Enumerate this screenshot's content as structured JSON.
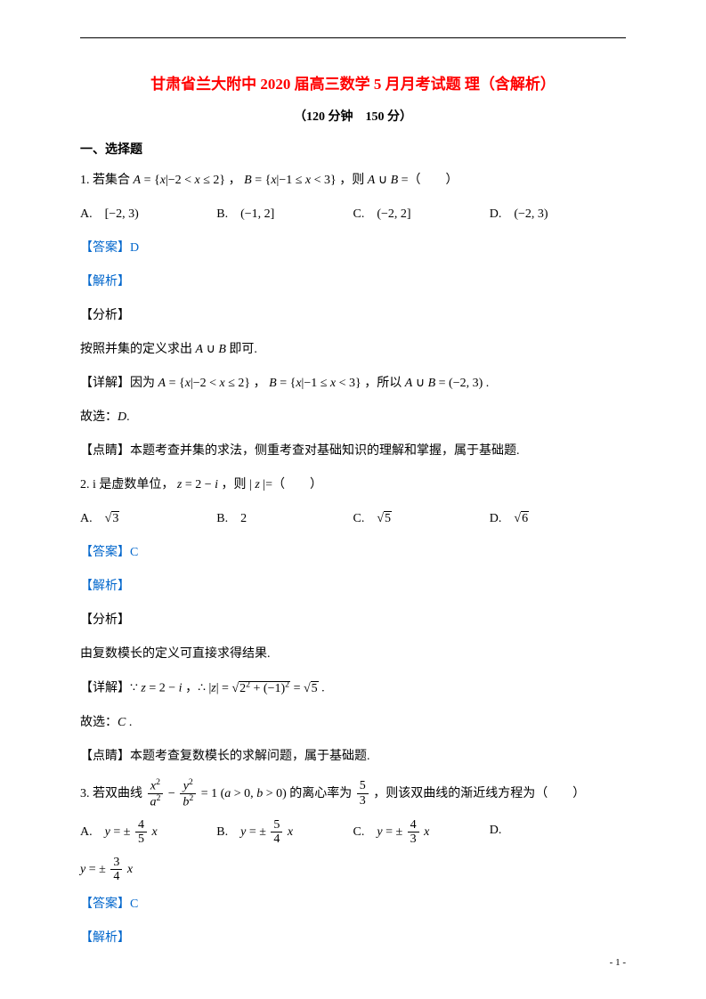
{
  "colors": {
    "title": "#ff0000",
    "link": "#0066cc",
    "text": "#000000",
    "background": "#ffffff"
  },
  "fonts": {
    "body": "SimSun",
    "math": "Times New Roman",
    "body_size": 14,
    "title_size": 17
  },
  "title": "甘肃省兰大附中 2020 届高三数学 5 月月考试题 理（含解析）",
  "subtitle": "（120 分钟　150 分）",
  "section1": "一、选择题",
  "q1": {
    "stem_pre": "1. 若集合 ",
    "set_A": "A = { x | −2 < x ≤ 2 }",
    "stem_mid": "，",
    "set_B": "B = { x | −1 ≤ x < 3 }",
    "stem_post": "，则 A ∪ B =（　　）",
    "optA_label": "A.",
    "optA": "[−2, 3)",
    "optB_label": "B.",
    "optB": "(−1, 2]",
    "optC_label": "C.",
    "optC": "(−2, 2]",
    "optD_label": "D.",
    "optD": "(−2, 3)",
    "answer_label": "【答案】",
    "answer": "D",
    "jiexi": "【解析】",
    "fenxi": "【分析】",
    "fenxi_text": "按照并集的定义求出 A ∪ B 即可.",
    "detail_label": "【详解】",
    "detail_pre": "因为 ",
    "detail_A": "A = { x | −2 < x ≤ 2 }",
    "detail_mid": "，",
    "detail_B": "B = { x | −1 ≤ x < 3 }",
    "detail_post1": "，所以 ",
    "detail_result": "A ∪ B = (−2, 3)",
    "detail_post2": ".",
    "choice": "故选：D.",
    "dianjing_label": "【点睛】",
    "dianjing": "本题考查并集的求法，侧重考查对基础知识的理解和掌握，属于基础题."
  },
  "q2": {
    "stem_pre": "2. i 是虚数单位，",
    "z": "z = 2 − i",
    "stem_post": "，则 | z |=（　　）",
    "optA_label": "A.",
    "optA": "3",
    "optB_label": "B.",
    "optB": "2",
    "optC_label": "C.",
    "optC": "5",
    "optD_label": "D.",
    "optD": "6",
    "answer_label": "【答案】",
    "answer": "C",
    "jiexi": "【解析】",
    "fenxi": "【分析】",
    "fenxi_text": "由复数模长的定义可直接求得结果.",
    "detail_label": "【详解】",
    "detail_pre": "∵ ",
    "detail_z": "z = 2 − i",
    "detail_mid": "，∴ ",
    "detail_abs": "| z | = √(2² + (−1)²) = √5",
    "detail_post": ".",
    "choice": "故选：C .",
    "dianjing_label": "【点睛】",
    "dianjing": "本题考查复数模长的求解问题，属于基础题."
  },
  "q3": {
    "stem_pre": "3. 若双曲线 ",
    "eq_num1": "x²",
    "eq_den1": "a²",
    "eq_minus": " − ",
    "eq_num2": "y²",
    "eq_den2": "b²",
    "eq_post": " = 1 (a > 0, b > 0) 的离心率为 ",
    "ecc_num": "5",
    "ecc_den": "3",
    "stem_post": "，则该双曲线的渐近线方程为（　　）",
    "optA_label": "A.",
    "optA_pre": "y = ± ",
    "optA_num": "4",
    "optA_den": "5",
    "optA_post": " x",
    "optB_label": "B.",
    "optB_pre": "y = ± ",
    "optB_num": "5",
    "optB_den": "4",
    "optB_post": " x",
    "optC_label": "C.",
    "optC_pre": "y = ± ",
    "optC_num": "4",
    "optC_den": "3",
    "optC_post": " x",
    "optD_label": "D.",
    "optD_pre": "y = ± ",
    "optD_num": "3",
    "optD_den": "4",
    "optD_post": " x",
    "answer_label": "【答案】",
    "answer": "C",
    "jiexi": "【解析】"
  },
  "page_num": "- 1 -"
}
